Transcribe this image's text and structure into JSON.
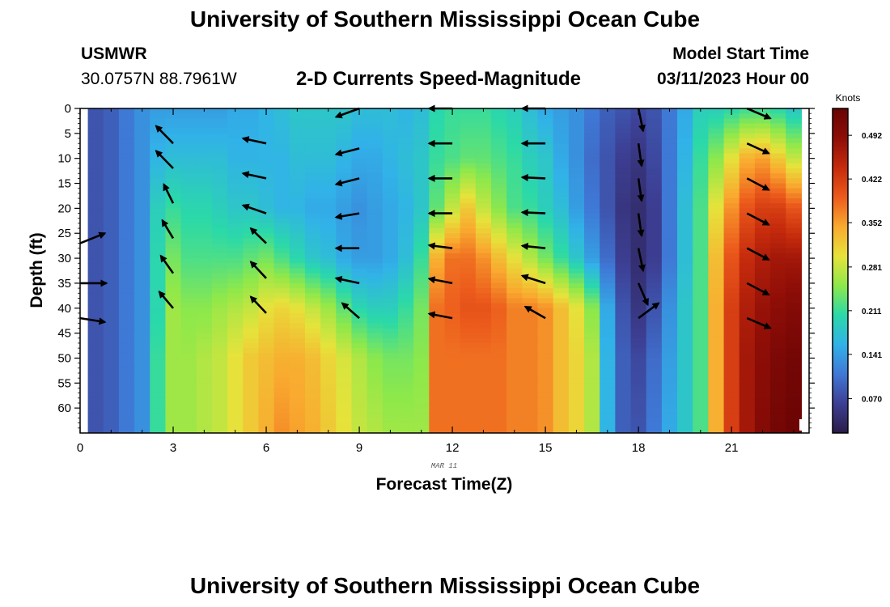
{
  "header": {
    "title": "University of Southern Mississippi Ocean Cube",
    "station_id": "USMWR",
    "coordinates": "30.0757N  88.7961W",
    "subtitle": "2-D Currents Speed-Magnitude",
    "model_start_label": "Model Start Time",
    "model_start_value": "03/11/2023 Hour 00"
  },
  "footer": {
    "title": "University of Southern Mississippi Ocean Cube"
  },
  "chart_data": {
    "type": "heatmap",
    "xlabel": "Forecast Time(Z)",
    "ylabel": "Depth (ft)",
    "date_label": "MAR 11",
    "xlim": [
      0,
      23.5
    ],
    "ylim": [
      0,
      65
    ],
    "y_inverted": true,
    "xticks": [
      "0",
      "3",
      "6",
      "9",
      "12",
      "15",
      "18",
      "21"
    ],
    "yticks": [
      "0",
      "5",
      "10",
      "15",
      "20",
      "25",
      "30",
      "35",
      "40",
      "45",
      "50",
      "55",
      "60"
    ],
    "colorbar": {
      "title": "Knots",
      "ticks": [
        "0.070",
        "0.141",
        "0.211",
        "0.281",
        "0.352",
        "0.422",
        "0.492"
      ],
      "range": [
        0.015,
        0.535
      ],
      "colors": [
        "#2a1c48",
        "#3d3f94",
        "#3f78d6",
        "#31b2e8",
        "#2bd9a8",
        "#8ee84a",
        "#e6e33b",
        "#f9a92f",
        "#ec5a1c",
        "#c52a0c",
        "#8e0d07",
        "#680404"
      ]
    },
    "hours": [
      0.5,
      1.0,
      1.5,
      2.0,
      2.5,
      3.0,
      3.5,
      4.0,
      4.5,
      5.0,
      5.5,
      6.0,
      6.5,
      7.0,
      7.5,
      8.0,
      8.5,
      9.0,
      9.5,
      10.0,
      10.5,
      11.0,
      11.5,
      12.0,
      12.5,
      13.0,
      13.5,
      14.0,
      14.5,
      15.0,
      15.5,
      16.0,
      16.5,
      17.0,
      17.5,
      18.0,
      18.5,
      19.0,
      19.5,
      20.0,
      20.5,
      21.0,
      21.5,
      22.0,
      22.5,
      23.0
    ],
    "profile_depths_ft": [
      0,
      10,
      20,
      30,
      40,
      50,
      64
    ],
    "speed_knots": [
      [
        0.08,
        0.08,
        0.08,
        0.08,
        0.08,
        0.08,
        0.08
      ],
      [
        0.09,
        0.09,
        0.09,
        0.09,
        0.09,
        0.09,
        0.09
      ],
      [
        0.11,
        0.11,
        0.11,
        0.11,
        0.11,
        0.11,
        0.11
      ],
      [
        0.13,
        0.13,
        0.13,
        0.13,
        0.13,
        0.13,
        0.13
      ],
      [
        0.14,
        0.16,
        0.19,
        0.2,
        0.2,
        0.21,
        0.21
      ],
      [
        0.14,
        0.17,
        0.21,
        0.24,
        0.26,
        0.26,
        0.26
      ],
      [
        0.14,
        0.17,
        0.2,
        0.22,
        0.25,
        0.26,
        0.26
      ],
      [
        0.14,
        0.17,
        0.2,
        0.22,
        0.25,
        0.27,
        0.27
      ],
      [
        0.14,
        0.17,
        0.19,
        0.22,
        0.26,
        0.28,
        0.28
      ],
      [
        0.15,
        0.16,
        0.18,
        0.22,
        0.27,
        0.3,
        0.3
      ],
      [
        0.15,
        0.16,
        0.18,
        0.23,
        0.28,
        0.32,
        0.32
      ],
      [
        0.16,
        0.16,
        0.17,
        0.24,
        0.3,
        0.33,
        0.34
      ],
      [
        0.17,
        0.16,
        0.16,
        0.22,
        0.31,
        0.34,
        0.36
      ],
      [
        0.18,
        0.17,
        0.16,
        0.2,
        0.3,
        0.34,
        0.35
      ],
      [
        0.18,
        0.17,
        0.15,
        0.18,
        0.28,
        0.33,
        0.34
      ],
      [
        0.18,
        0.17,
        0.15,
        0.17,
        0.26,
        0.31,
        0.32
      ],
      [
        0.18,
        0.16,
        0.14,
        0.15,
        0.23,
        0.29,
        0.3
      ],
      [
        0.17,
        0.15,
        0.13,
        0.14,
        0.2,
        0.27,
        0.28
      ],
      [
        0.17,
        0.15,
        0.14,
        0.14,
        0.19,
        0.25,
        0.27
      ],
      [
        0.17,
        0.16,
        0.15,
        0.15,
        0.19,
        0.24,
        0.26
      ],
      [
        0.16,
        0.17,
        0.16,
        0.17,
        0.21,
        0.24,
        0.26
      ],
      [
        0.17,
        0.18,
        0.18,
        0.21,
        0.24,
        0.25,
        0.26
      ],
      [
        0.2,
        0.21,
        0.23,
        0.34,
        0.38,
        0.38,
        0.38
      ],
      [
        0.21,
        0.22,
        0.28,
        0.38,
        0.39,
        0.38,
        0.38
      ],
      [
        0.21,
        0.23,
        0.32,
        0.38,
        0.4,
        0.38,
        0.38
      ],
      [
        0.21,
        0.23,
        0.28,
        0.36,
        0.4,
        0.38,
        0.38
      ],
      [
        0.2,
        0.22,
        0.25,
        0.33,
        0.39,
        0.38,
        0.38
      ],
      [
        0.19,
        0.21,
        0.22,
        0.3,
        0.37,
        0.37,
        0.37
      ],
      [
        0.17,
        0.19,
        0.21,
        0.27,
        0.37,
        0.37,
        0.37
      ],
      [
        0.15,
        0.18,
        0.19,
        0.24,
        0.36,
        0.36,
        0.36
      ],
      [
        0.14,
        0.15,
        0.17,
        0.21,
        0.33,
        0.33,
        0.33
      ],
      [
        0.13,
        0.13,
        0.14,
        0.18,
        0.3,
        0.31,
        0.31
      ],
      [
        0.11,
        0.1,
        0.11,
        0.14,
        0.25,
        0.27,
        0.27
      ],
      [
        0.09,
        0.08,
        0.08,
        0.1,
        0.15,
        0.16,
        0.16
      ],
      [
        0.08,
        0.06,
        0.05,
        0.06,
        0.08,
        0.09,
        0.09
      ],
      [
        0.07,
        0.05,
        0.04,
        0.04,
        0.05,
        0.07,
        0.08
      ],
      [
        0.08,
        0.07,
        0.06,
        0.06,
        0.08,
        0.1,
        0.11
      ],
      [
        0.11,
        0.11,
        0.11,
        0.11,
        0.13,
        0.14,
        0.15
      ],
      [
        0.15,
        0.16,
        0.17,
        0.17,
        0.18,
        0.18,
        0.18
      ],
      [
        0.19,
        0.21,
        0.22,
        0.22,
        0.22,
        0.22,
        0.22
      ],
      [
        0.19,
        0.25,
        0.3,
        0.33,
        0.34,
        0.34,
        0.34
      ],
      [
        0.2,
        0.3,
        0.36,
        0.4,
        0.42,
        0.42,
        0.42
      ],
      [
        0.21,
        0.34,
        0.4,
        0.44,
        0.46,
        0.47,
        0.47
      ],
      [
        0.21,
        0.35,
        0.42,
        0.46,
        0.48,
        0.49,
        0.5
      ],
      [
        0.2,
        0.32,
        0.42,
        0.47,
        0.49,
        0.51,
        0.52
      ],
      [
        0.18,
        0.28,
        0.4,
        0.47,
        0.5,
        0.52,
        0.53
      ]
    ],
    "vectors": {
      "times": [
        0.25,
        2.75,
        5.75,
        8.75,
        11.75,
        14.75,
        17.75,
        21.75
      ],
      "depths_ft": [
        3,
        7,
        11,
        15,
        19,
        24,
        28,
        31,
        35,
        38,
        42
      ],
      "items": [
        {
          "x": 0,
          "y": 27,
          "dx": 0.8,
          "dy": -2
        },
        {
          "x": 0,
          "y": 35,
          "dx": 0.85,
          "dy": 0
        },
        {
          "x": 0,
          "y": 42,
          "dx": 0.8,
          "dy": 0.8
        },
        {
          "x": 3,
          "y": 7,
          "dx": -0.55,
          "dy": -3.5
        },
        {
          "x": 3,
          "y": 12,
          "dx": -0.55,
          "dy": -3.5
        },
        {
          "x": 3,
          "y": 19,
          "dx": -0.3,
          "dy": -3.8
        },
        {
          "x": 3,
          "y": 26,
          "dx": -0.35,
          "dy": -3.6
        },
        {
          "x": 3,
          "y": 33,
          "dx": -0.4,
          "dy": -3.5
        },
        {
          "x": 3,
          "y": 40,
          "dx": -0.45,
          "dy": -3.3
        },
        {
          "x": 6,
          "y": 7,
          "dx": -0.75,
          "dy": -1
        },
        {
          "x": 6,
          "y": 14,
          "dx": -0.75,
          "dy": -1
        },
        {
          "x": 6,
          "y": 21,
          "dx": -0.75,
          "dy": -1.6
        },
        {
          "x": 6,
          "y": 27,
          "dx": -0.5,
          "dy": -3
        },
        {
          "x": 6,
          "y": 34,
          "dx": -0.5,
          "dy": -3.3
        },
        {
          "x": 6,
          "y": 41,
          "dx": -0.5,
          "dy": -3.3
        },
        {
          "x": 9,
          "y": 0,
          "dx": -0.75,
          "dy": 1.7
        },
        {
          "x": 9,
          "y": 8,
          "dx": -0.75,
          "dy": 1.2
        },
        {
          "x": 9,
          "y": 14,
          "dx": -0.75,
          "dy": 1.2
        },
        {
          "x": 9,
          "y": 21,
          "dx": -0.75,
          "dy": 0.8
        },
        {
          "x": 9,
          "y": 28,
          "dx": -0.75,
          "dy": 0
        },
        {
          "x": 9,
          "y": 35,
          "dx": -0.75,
          "dy": -1
        },
        {
          "x": 9,
          "y": 42,
          "dx": -0.55,
          "dy": -3
        },
        {
          "x": 12,
          "y": 0,
          "dx": -0.75,
          "dy": 0
        },
        {
          "x": 12,
          "y": 7,
          "dx": -0.75,
          "dy": 0
        },
        {
          "x": 12,
          "y": 14,
          "dx": -0.75,
          "dy": 0
        },
        {
          "x": 12,
          "y": 21,
          "dx": -0.75,
          "dy": 0
        },
        {
          "x": 12,
          "y": 28,
          "dx": -0.75,
          "dy": -0.6
        },
        {
          "x": 12,
          "y": 35,
          "dx": -0.75,
          "dy": -0.9
        },
        {
          "x": 12,
          "y": 42,
          "dx": -0.75,
          "dy": -0.9
        },
        {
          "x": 15,
          "y": 0,
          "dx": -0.75,
          "dy": 0
        },
        {
          "x": 15,
          "y": 7,
          "dx": -0.75,
          "dy": 0
        },
        {
          "x": 15,
          "y": 14,
          "dx": -0.75,
          "dy": -0.2
        },
        {
          "x": 15,
          "y": 21,
          "dx": -0.75,
          "dy": -0.2
        },
        {
          "x": 15,
          "y": 28,
          "dx": -0.75,
          "dy": -0.5
        },
        {
          "x": 15,
          "y": 35,
          "dx": -0.75,
          "dy": -1.5
        },
        {
          "x": 15,
          "y": 42,
          "dx": -0.65,
          "dy": -2.3
        },
        {
          "x": 18,
          "y": 0,
          "dx": 0.15,
          "dy": 4.5
        },
        {
          "x": 18,
          "y": 7,
          "dx": 0.1,
          "dy": 4.5
        },
        {
          "x": 18,
          "y": 14,
          "dx": 0.1,
          "dy": 4.5
        },
        {
          "x": 18,
          "y": 21,
          "dx": 0.1,
          "dy": 4.5
        },
        {
          "x": 18,
          "y": 28,
          "dx": 0.15,
          "dy": 4.5
        },
        {
          "x": 18,
          "y": 35,
          "dx": 0.3,
          "dy": 4.3
        },
        {
          "x": 18,
          "y": 42,
          "dx": 0.65,
          "dy": -3
        },
        {
          "x": 21.5,
          "y": 0,
          "dx": 0.75,
          "dy": 2
        },
        {
          "x": 21.5,
          "y": 7,
          "dx": 0.7,
          "dy": 2
        },
        {
          "x": 21.5,
          "y": 14,
          "dx": 0.7,
          "dy": 2.3
        },
        {
          "x": 21.5,
          "y": 21,
          "dx": 0.7,
          "dy": 2.3
        },
        {
          "x": 21.5,
          "y": 28,
          "dx": 0.7,
          "dy": 2.3
        },
        {
          "x": 21.5,
          "y": 35,
          "dx": 0.7,
          "dy": 2.3
        },
        {
          "x": 21.5,
          "y": 42,
          "dx": 0.75,
          "dy": 2
        }
      ]
    }
  }
}
